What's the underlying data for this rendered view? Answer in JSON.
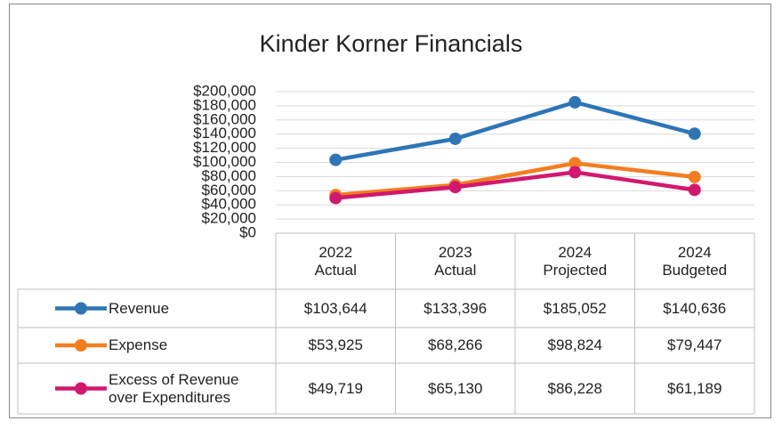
{
  "chart_data": {
    "type": "line",
    "title": "Kinder Korner Financials",
    "categories": [
      "2022 Actual",
      "2023 Actual",
      "2024 Projected",
      "2024 Budgeted"
    ],
    "series": [
      {
        "name": "Revenue",
        "color": "#2e75b6",
        "values": [
          103644,
          133396,
          185052,
          140636
        ],
        "value_labels": [
          "$103,644",
          "$133,396",
          "$185,052",
          "$140,636"
        ]
      },
      {
        "name": "Expense",
        "color": "#f47d20",
        "values": [
          53925,
          68266,
          98824,
          79447
        ],
        "value_labels": [
          "$53,925",
          "$68,266",
          "$98,824",
          "$79,447"
        ]
      },
      {
        "name": "Excess of Revenue over Expenditures",
        "color": "#d1186f",
        "values": [
          49719,
          65130,
          86228,
          61189
        ],
        "value_labels": [
          "$49,719",
          "$65,130",
          "$86,228",
          "$61,189"
        ]
      }
    ],
    "ylim": [
      0,
      200000
    ],
    "yticks": [
      {
        "value": 0,
        "label": "$0"
      },
      {
        "value": 20000,
        "label": "$20,000"
      },
      {
        "value": 40000,
        "label": "$40,000"
      },
      {
        "value": 60000,
        "label": "$60,000"
      },
      {
        "value": 80000,
        "label": "$80,000"
      },
      {
        "value": 100000,
        "label": "$100,000"
      },
      {
        "value": 120000,
        "label": "$120,000"
      },
      {
        "value": 140000,
        "label": "$140,000"
      },
      {
        "value": 160000,
        "label": "$160,000"
      },
      {
        "value": 180000,
        "label": "$180,000"
      },
      {
        "value": 200000,
        "label": "$200,000"
      }
    ],
    "grid": true,
    "data_table": true
  }
}
